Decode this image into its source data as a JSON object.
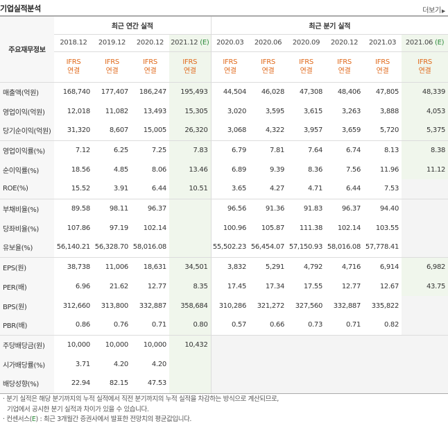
{
  "header": {
    "title": "기업실적분석",
    "more": "더보기"
  },
  "table": {
    "row_header_label": "주요재무정보",
    "annual_label": "최근 연간 실적",
    "quarter_label": "최근 분기 실적",
    "annual_periods": [
      {
        "date": "2018.12",
        "est": ""
      },
      {
        "date": "2019.12",
        "est": ""
      },
      {
        "date": "2020.12",
        "est": ""
      },
      {
        "date": "2021.12",
        "est": "(E)"
      }
    ],
    "quarter_periods": [
      {
        "date": "2020.03",
        "est": ""
      },
      {
        "date": "2020.06",
        "est": ""
      },
      {
        "date": "2020.09",
        "est": ""
      },
      {
        "date": "2020.12",
        "est": ""
      },
      {
        "date": "2021.03",
        "est": ""
      },
      {
        "date": "2021.06",
        "est": "(E)"
      }
    ],
    "ifrs_line1": "IFRS",
    "ifrs_line2": "연결",
    "rows": [
      {
        "label": "매출액(억원)",
        "values": [
          "168,740",
          "177,407",
          "186,247",
          "195,493",
          "44,504",
          "46,028",
          "47,308",
          "48,406",
          "47,805",
          "48,339"
        ]
      },
      {
        "label": "영업이익(억원)",
        "values": [
          "12,018",
          "11,082",
          "13,493",
          "15,305",
          "3,020",
          "3,595",
          "3,615",
          "3,263",
          "3,888",
          "4,053"
        ]
      },
      {
        "label": "당기순이익(억원)",
        "values": [
          "31,320",
          "8,607",
          "15,005",
          "26,320",
          "3,068",
          "4,322",
          "3,957",
          "3,659",
          "5,720",
          "5,375"
        ]
      },
      {
        "label": "영업이익률(%)",
        "values": [
          "7.12",
          "6.25",
          "7.25",
          "7.83",
          "6.79",
          "7.81",
          "7.64",
          "6.74",
          "8.13",
          "8.38"
        ]
      },
      {
        "label": "순이익률(%)",
        "values": [
          "18.56",
          "4.85",
          "8.06",
          "13.46",
          "6.89",
          "9.39",
          "8.36",
          "7.56",
          "11.96",
          "11.12"
        ]
      },
      {
        "label": "ROE(%)",
        "values": [
          "15.52",
          "3.91",
          "6.44",
          "10.51",
          "3.65",
          "4.27",
          "4.71",
          "6.44",
          "7.53",
          ""
        ]
      },
      {
        "label": "부채비율(%)",
        "values": [
          "89.58",
          "98.11",
          "96.37",
          "",
          "96.56",
          "91.36",
          "91.83",
          "96.37",
          "94.40",
          ""
        ]
      },
      {
        "label": "당좌비율(%)",
        "values": [
          "107.86",
          "97.19",
          "102.14",
          "",
          "100.96",
          "105.87",
          "111.38",
          "102.14",
          "103.55",
          ""
        ]
      },
      {
        "label": "유보율(%)",
        "values": [
          "56,140.21",
          "56,328.70",
          "58,016.08",
          "",
          "55,502.23",
          "56,454.07",
          "57,150.93",
          "58,016.08",
          "57,778.41",
          ""
        ]
      },
      {
        "label": "EPS(원)",
        "values": [
          "38,738",
          "11,006",
          "18,631",
          "34,501",
          "3,832",
          "5,291",
          "4,792",
          "4,716",
          "6,914",
          "6,982"
        ]
      },
      {
        "label": "PER(배)",
        "values": [
          "6.96",
          "21.62",
          "12.77",
          "8.35",
          "17.45",
          "17.34",
          "17.55",
          "12.77",
          "12.67",
          "43.75"
        ]
      },
      {
        "label": "BPS(원)",
        "values": [
          "312,660",
          "313,800",
          "332,887",
          "358,684",
          "310,286",
          "321,272",
          "327,560",
          "332,887",
          "335,822",
          ""
        ]
      },
      {
        "label": "PBR(배)",
        "values": [
          "0.86",
          "0.76",
          "0.71",
          "0.80",
          "0.57",
          "0.66",
          "0.73",
          "0.71",
          "0.82",
          ""
        ]
      },
      {
        "label": "주당배당금(원)",
        "values": [
          "10,000",
          "10,000",
          "10,000",
          "10,432",
          "",
          "",
          "",
          "",
          "",
          ""
        ]
      },
      {
        "label": "시가배당률(%)",
        "values": [
          "3.71",
          "4.20",
          "4.20",
          "",
          "",
          "",
          "",
          "",
          "",
          ""
        ]
      },
      {
        "label": "배당성향(%)",
        "values": [
          "22.94",
          "82.15",
          "47.53",
          "",
          "",
          "",
          "",
          "",
          "",
          ""
        ]
      }
    ]
  },
  "notes": {
    "line1": "· 분기 실적은 해당 분기까지의 누적 실적에서 직전 분기까지의 누적 실적을 차감하는 방식으로 계산되므로,",
    "line2": "기업에서 공시한 분기 실적과 차이가 있을 수 있습니다.",
    "line3_prefix": "· 컨센서스(",
    "line3_e": "E",
    "line3_suffix": ") : 최근 3개월간 증권사에서 발표한 전망치의 평균값입니다."
  }
}
